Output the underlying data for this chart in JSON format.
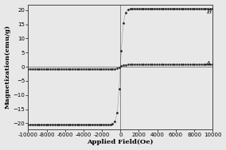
{
  "title": "",
  "xlabel": "Applied Field(Oe)",
  "ylabel": "Magnetization(emu/g)",
  "xlim": [
    -10000,
    10000
  ],
  "ylim": [
    -22,
    22
  ],
  "xticks": [
    -10000,
    -8000,
    -6000,
    -4000,
    -2000,
    0,
    2000,
    4000,
    6000,
    8000,
    10000
  ],
  "yticks": [
    -20,
    -15,
    -10,
    -5,
    0,
    5,
    10,
    15,
    20
  ],
  "label_B": "B",
  "label_A": "A",
  "curve_B_saturation": 20.5,
  "curve_B_x0": 350,
  "curve_A_saturation": 0.75,
  "curve_A_x0": 350,
  "line_color": "#222222",
  "marker_color": "#222222",
  "background_color": "#e8e8e8",
  "plot_bg_color": "#e8e8e8",
  "font_size_labels": 6,
  "font_size_ticks": 5,
  "marker_size_B": 2.0,
  "marker_step_B": 6,
  "marker_size_A": 1.8,
  "marker_step_A": 6
}
